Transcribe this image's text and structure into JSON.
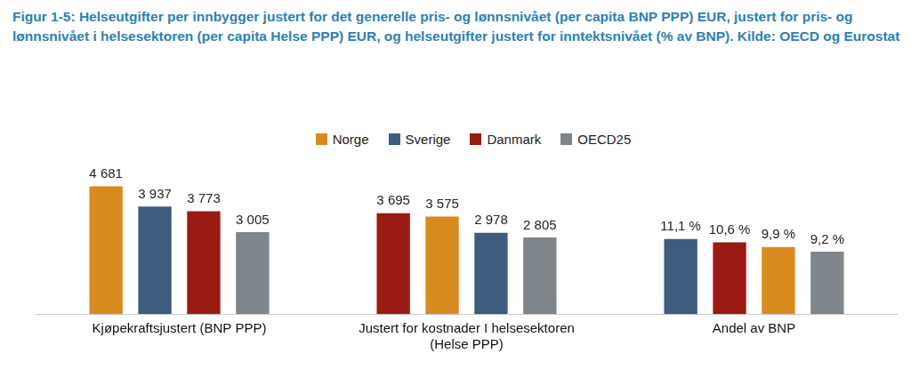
{
  "title": "Figur 1-5: Helseutgifter per innbygger justert for det generelle pris- og lønnsnivået (per capita BNP PPP) EUR, justert for pris- og lønnsnivået i helsesektoren (per capita Helse PPP) EUR, og helseutgifter justert for inntektsnivået (% av BNP). Kilde: OECD og Eurostat",
  "legend": "top",
  "chart_data": [
    {
      "type": "bar",
      "categories": [
        "Kjøpekraftsjustert (BNP PPP)"
      ],
      "series": [
        {
          "name": "Norge",
          "color": "#D98A1F",
          "values": [
            4681
          ],
          "value_labels": [
            "4 681"
          ]
        },
        {
          "name": "Sverige",
          "color": "#3E5C7E",
          "values": [
            3937
          ],
          "value_labels": [
            "3 937"
          ]
        },
        {
          "name": "Danmark",
          "color": "#9A1A14",
          "values": [
            3773
          ],
          "value_labels": [
            "3 773"
          ]
        },
        {
          "name": "OECD25",
          "color": "#7E858B",
          "values": [
            3005
          ],
          "value_labels": [
            "3 005"
          ]
        }
      ],
      "ylim": [
        0,
        6200
      ],
      "grid": false,
      "data_labels": true,
      "tick_labels": "x"
    },
    {
      "type": "bar",
      "categories": [
        "Justert for kostnader I helsesektoren (Helse PPP)"
      ],
      "series": [
        {
          "name": "Danmark",
          "color": "#9A1A14",
          "values": [
            3695
          ],
          "value_labels": [
            "3 695"
          ]
        },
        {
          "name": "Norge",
          "color": "#D98A1F",
          "values": [
            3575
          ],
          "value_labels": [
            "3 575"
          ]
        },
        {
          "name": "Sverige",
          "color": "#3E5C7E",
          "values": [
            2978
          ],
          "value_labels": [
            "2 978"
          ]
        },
        {
          "name": "OECD25",
          "color": "#7E858B",
          "values": [
            2805
          ],
          "value_labels": [
            "2 805"
          ]
        }
      ],
      "ylim": [
        0,
        6200
      ],
      "grid": false,
      "data_labels": true,
      "tick_labels": "x"
    },
    {
      "type": "bar",
      "categories": [
        "Andel av BNP"
      ],
      "series": [
        {
          "name": "Sverige",
          "color": "#3E5C7E",
          "values": [
            11.1
          ],
          "value_labels": [
            "11,1 %"
          ]
        },
        {
          "name": "Danmark",
          "color": "#9A1A14",
          "values": [
            10.6
          ],
          "value_labels": [
            "10,6 %"
          ]
        },
        {
          "name": "Norge",
          "color": "#D98A1F",
          "values": [
            9.9
          ],
          "value_labels": [
            "9,9 %"
          ]
        },
        {
          "name": "OECD25",
          "color": "#7E858B",
          "values": [
            9.2
          ],
          "value_labels": [
            "9,2 %"
          ]
        }
      ],
      "ylim": [
        0,
        25
      ],
      "grid": false,
      "data_labels": true,
      "tick_labels": "x"
    }
  ]
}
